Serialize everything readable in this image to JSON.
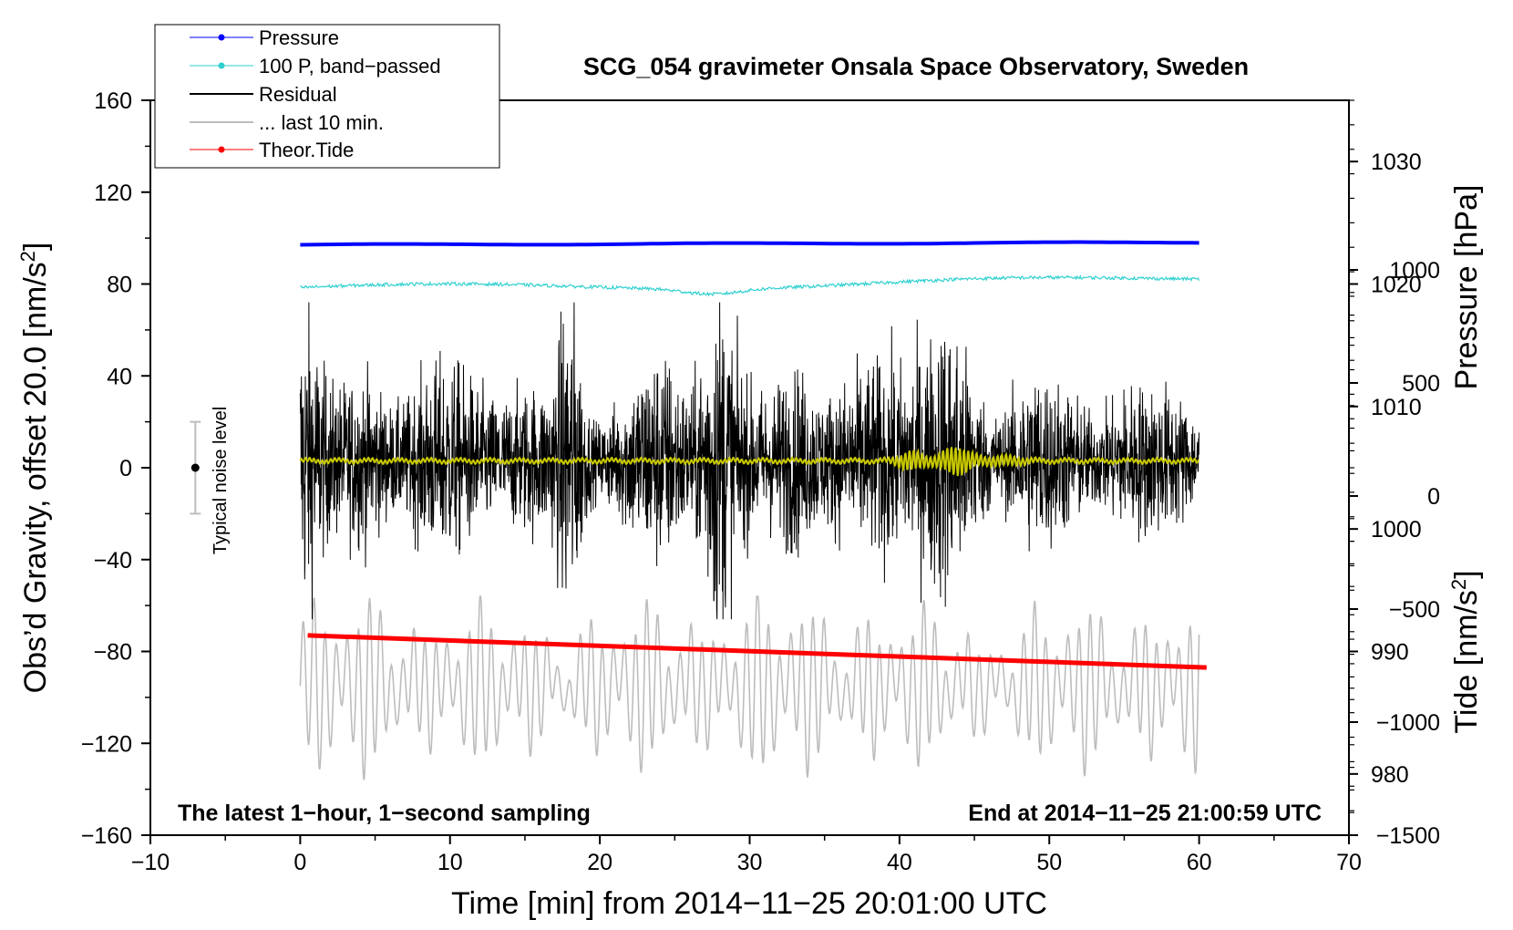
{
  "chart_data": {
    "type": "line",
    "title": "SCG_054 gravimeter Onsala Space Observatory, Sweden",
    "xlabel": "Time [min] from 2014−11−25 20:01:00 UTC",
    "ylabel": "Obs’d Gravity, offset 20.0 [nm/s",
    "ylabel_sup": "2",
    "ylabel_end": "]",
    "y2_pressure_label": "Pressure [hPa]",
    "y2_tide_label": "Tide [nm/s",
    "y2_tide_sup": "2",
    "y2_tide_end": "]",
    "xlim": [
      -10,
      70
    ],
    "ylim": [
      -160,
      160
    ],
    "x_ticks": [
      -10,
      0,
      10,
      20,
      30,
      40,
      50,
      60,
      70
    ],
    "x_tick_labels": [
      "−10",
      "0",
      "10",
      "20",
      "30",
      "40",
      "50",
      "60",
      "70"
    ],
    "y_ticks": [
      -160,
      -120,
      -80,
      -40,
      0,
      40,
      80,
      120,
      160
    ],
    "y_tick_labels": [
      "−160",
      "−120",
      "−80",
      "−40",
      "0",
      "40",
      "80",
      "120",
      "160"
    ],
    "pressure_axis": {
      "range": [
        975,
        1035
      ],
      "ticks": [
        980,
        990,
        1000,
        1010,
        1020,
        1030
      ],
      "tick_labels": [
        "980",
        "990",
        "1000",
        "1010",
        "1020",
        "1030"
      ]
    },
    "tide_axis": {
      "range": [
        -1500,
        1750
      ],
      "ticks": [
        -1500,
        -1000,
        -500,
        0,
        500,
        1000
      ],
      "tick_labels": [
        "−1500",
        "−1000",
        "−500",
        "0",
        "500",
        "1000"
      ]
    },
    "legend": [
      {
        "label": "Pressure",
        "color": "#0000ff",
        "marker": true
      },
      {
        "label": "100 P, band−passed",
        "color": "#30d0d0",
        "marker": true
      },
      {
        "label": "Residual",
        "color": "#000000",
        "marker": false
      },
      {
        "label": "... last 10 min.",
        "color": "#bdbdbd",
        "marker": false
      },
      {
        "label": "Theor.Tide",
        "color": "#ff0000",
        "marker": true
      }
    ],
    "annotations": {
      "left": "The latest 1−hour, 1−second sampling",
      "right": "End at 2014−11−25 21:00:59 UTC",
      "noise": "Typical noise level"
    },
    "noise_bar": {
      "x": -7,
      "center": 0,
      "half_range": 20
    },
    "series": [
      {
        "name": "Pressure",
        "color": "#0000ff",
        "axis": "pressure",
        "x_range": [
          0,
          60
        ],
        "start": 1023.2,
        "end": 1023.4
      },
      {
        "name": "100 P, band−passed",
        "color": "#30d0d0",
        "axis": "gravity",
        "x_range": [
          0,
          60
        ],
        "start": 78.5,
        "end": 83.0
      },
      {
        "name": "Residual",
        "color": "#000000",
        "axis": "gravity",
        "x_range": [
          0,
          60
        ],
        "center": 3,
        "typical_amplitude": 30,
        "max": 72,
        "min": -66
      },
      {
        "name": "... last 10 min.",
        "color": "#bdbdbd",
        "axis": "gravity",
        "x_range": [
          0,
          60
        ],
        "center": -95,
        "max": -56,
        "min": -143
      },
      {
        "name": "Theor.Tide",
        "color": "#ff0000",
        "axis": "gravity",
        "x_range": [
          0.5,
          60.5
        ],
        "start": -73,
        "end": -87
      },
      {
        "name": "Smoothed residual",
        "color": "#c8c800",
        "axis": "gravity",
        "x_range": [
          0,
          60
        ],
        "center": 3
      }
    ],
    "colors": {
      "frame": "#000000",
      "noise_bar": "#bdbdbd"
    }
  }
}
